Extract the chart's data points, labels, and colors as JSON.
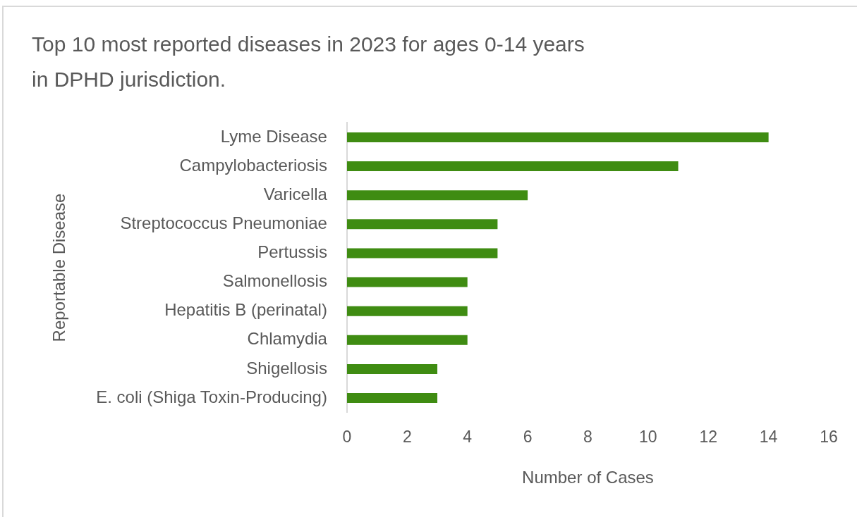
{
  "chart_data": {
    "type": "bar",
    "orientation": "horizontal",
    "title": "Top 10 most reported diseases in 2023 for ages 0-14 years in DPHD jurisdiction.",
    "xlabel": "Number of Cases",
    "ylabel": "Reportable Disease",
    "categories": [
      "Lyme Disease",
      "Campylobacteriosis",
      "Varicella",
      "Streptococcus Pneumoniae",
      "Pertussis",
      "Salmonellosis",
      "Hepatitis B (perinatal)",
      "Chlamydia",
      "Shigellosis",
      "E. coli (Shiga Toxin-Producing)"
    ],
    "values": [
      14,
      11,
      6,
      5,
      5,
      4,
      4,
      4,
      3,
      3
    ],
    "color": "#3f8c12",
    "xlim": [
      0,
      16
    ],
    "xticks": [
      0,
      2,
      4,
      6,
      8,
      10,
      12,
      14,
      16
    ],
    "grid": false,
    "legend": false
  }
}
